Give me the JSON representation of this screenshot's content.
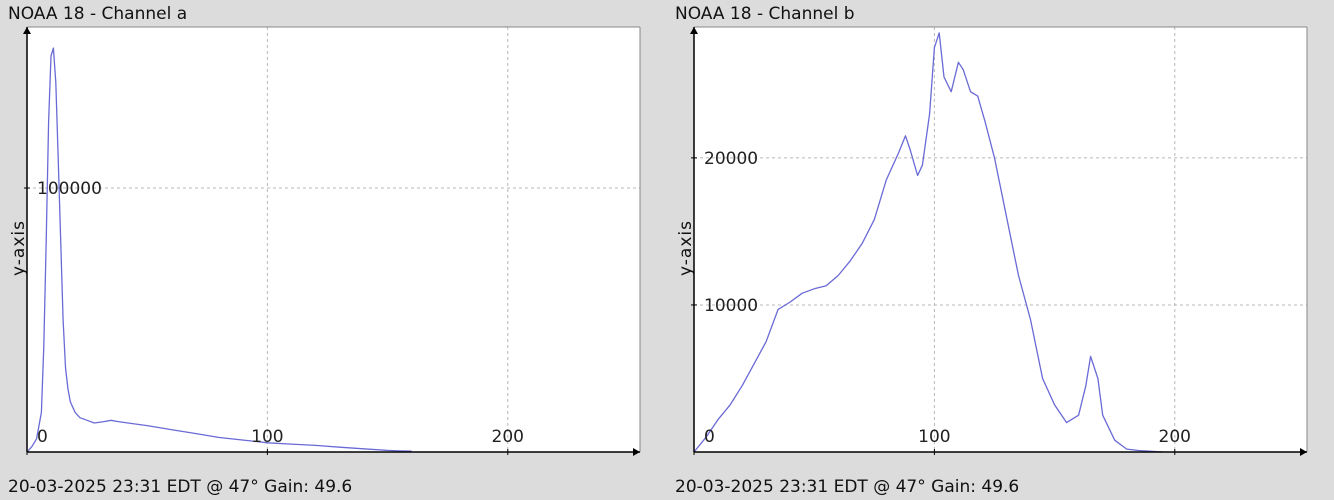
{
  "colors": {
    "background": "#dcdcdc",
    "plot_area": "#ffffff",
    "line": "#6a6ad6",
    "grid": "#b8b8b8",
    "axis": "#000000"
  },
  "panels": [
    {
      "title": "NOAA 18 - Channel a",
      "footer": "20-03-2025 23:31 EDT @ 47° Gain: 49.6",
      "ylabel": "y-axis"
    },
    {
      "title": "NOAA 18 - Channel b",
      "footer": "20-03-2025 23:31 EDT @ 47° Gain: 49.6",
      "ylabel": "y-axis"
    }
  ],
  "chart_data": [
    {
      "type": "line",
      "title": "NOAA 18 - Channel a",
      "xlabel": "",
      "ylabel": "y-axis",
      "xlim": [
        0,
        255
      ],
      "ylim": [
        0,
        161000
      ],
      "xticks": [
        0,
        100,
        200
      ],
      "yticks": [
        100000
      ],
      "grid": true,
      "x": [
        0,
        2,
        4,
        6,
        7,
        8,
        9,
        10,
        11,
        12,
        13,
        14,
        15,
        16,
        17,
        18,
        20,
        22,
        25,
        28,
        32,
        35,
        38,
        42,
        50,
        60,
        70,
        80,
        90,
        95,
        100,
        110,
        120,
        130,
        140,
        150,
        155,
        160
      ],
      "y": [
        0,
        2000,
        5000,
        15000,
        40000,
        80000,
        125000,
        150000,
        153000,
        140000,
        110000,
        80000,
        50000,
        32000,
        24000,
        19000,
        15000,
        13000,
        12000,
        11000,
        11500,
        12000,
        11500,
        11000,
        10000,
        8500,
        7000,
        5500,
        4500,
        4000,
        3500,
        3000,
        2500,
        1800,
        1200,
        600,
        400,
        300
      ]
    },
    {
      "type": "line",
      "title": "NOAA 18 - Channel b",
      "xlabel": "",
      "ylabel": "y-axis",
      "xlim": [
        0,
        255
      ],
      "ylim": [
        0,
        28900
      ],
      "xticks": [
        0,
        100,
        200
      ],
      "yticks": [
        10000,
        20000
      ],
      "grid": true,
      "x": [
        0,
        5,
        10,
        15,
        20,
        25,
        30,
        35,
        40,
        45,
        50,
        55,
        60,
        65,
        70,
        75,
        80,
        85,
        88,
        90,
        93,
        95,
        98,
        100,
        102,
        104,
        107,
        110,
        112,
        115,
        118,
        121,
        125,
        130,
        135,
        140,
        145,
        150,
        155,
        160,
        163,
        165,
        168,
        170,
        175,
        180,
        185,
        190,
        195
      ],
      "y": [
        0,
        1000,
        2200,
        3200,
        4500,
        6000,
        7500,
        9700,
        10200,
        10800,
        11100,
        11300,
        12000,
        13000,
        14200,
        15800,
        18500,
        20300,
        21500,
        20500,
        18800,
        19500,
        23000,
        27500,
        28500,
        25500,
        24500,
        26500,
        26000,
        24500,
        24200,
        22500,
        20000,
        16000,
        12000,
        9000,
        5000,
        3200,
        2000,
        2500,
        4500,
        6500,
        5000,
        2500,
        800,
        200,
        100,
        50,
        0
      ]
    }
  ]
}
